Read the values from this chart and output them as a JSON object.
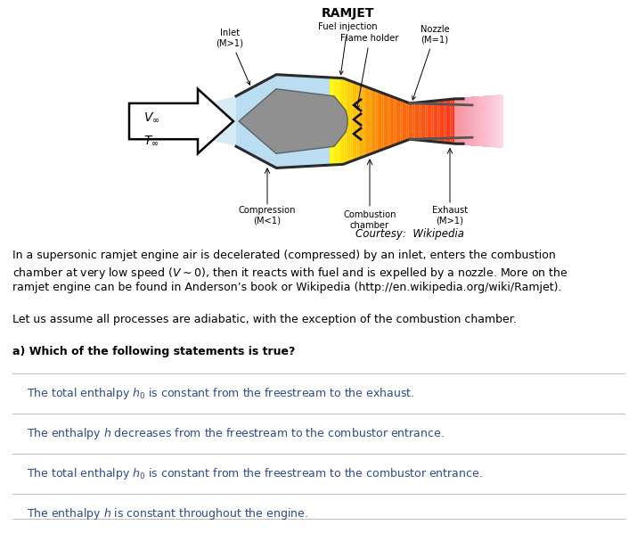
{
  "title": "RAMJET",
  "courtesy": "Courtesy:  Wikipedia",
  "labels": {
    "inlet": "Inlet\n(M>1)",
    "fuel_injection": "Fuel injection",
    "flame_holder": "Flame holder",
    "nozzle": "Nozzle\n(M=1)",
    "compression": "Compression\n(M<1)",
    "combustion": "Combustion\nchamber",
    "exhaust": "Exhaust\n(M>1)"
  },
  "v_label": "$V_{\\infty}$",
  "t_label": "$T_{\\infty}$",
  "paragraph1_line1": "In a supersonic ramjet engine air is decelerated (compressed) by an inlet, enters the combustion",
  "paragraph1_line2": "chamber at very low speed ($V \\sim 0$), then it reacts with fuel and is expelled by a nozzle. More on the",
  "paragraph1_line3": "ramjet engine can be found in Anderson’s book or Wikipedia (http://en.wikipedia.org/wiki/Ramjet).",
  "paragraph2": "Let us assume all processes are adiabatic, with the exception of the combustion chamber.",
  "question": "a) Which of the following statements is true?",
  "choices": [
    "The total enthalpy $h_0$ is constant from the freestream to the exhaust.",
    "The enthalpy $h$ decreases from the freestream to the combustor entrance.",
    "The total enthalpy $h_0$ is constant from the freestream to the combustor entrance.",
    "The enthalpy $h$ is constant throughout the engine."
  ],
  "bg_color": "#ffffff",
  "text_color": "#000000",
  "choice_text_color": "#2c4a8c",
  "separator_color": "#bbbbbb",
  "inlet_blue": "#b0d8f0",
  "exhaust_pink": "#f090a0",
  "spike_gray": "#909090",
  "spike_edge": "#606060",
  "wall_color": "#2a2a2a",
  "flap_color": "#555555"
}
